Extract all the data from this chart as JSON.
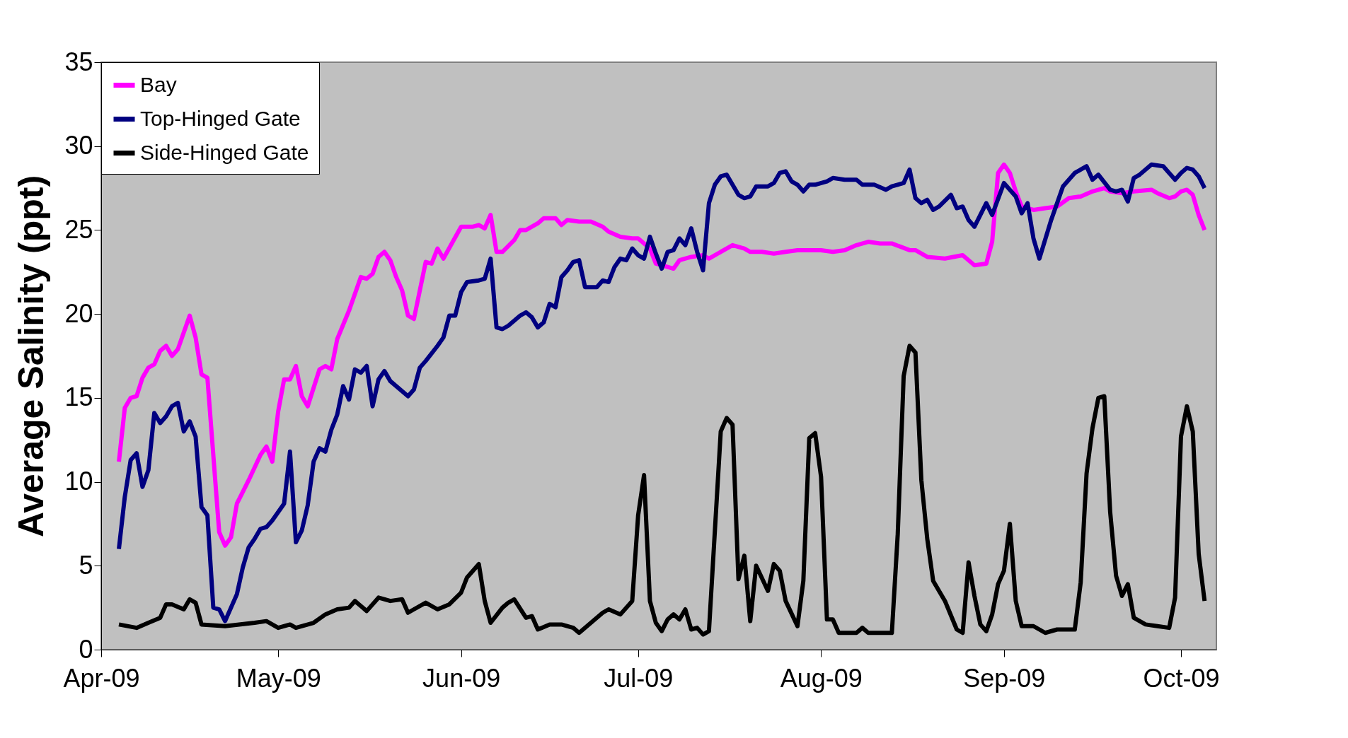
{
  "chart_data": {
    "type": "line",
    "ylabel": "Average Salinity (ppt)",
    "xlim": [
      "2009-04-01",
      "2009-10-07"
    ],
    "xticks": [
      {
        "value": "2009-04-01",
        "label": "Apr-09"
      },
      {
        "value": "2009-05-01",
        "label": "May-09"
      },
      {
        "value": "2009-06-01",
        "label": "Jun-09"
      },
      {
        "value": "2009-07-01",
        "label": "Jul-09"
      },
      {
        "value": "2009-08-01",
        "label": "Aug-09"
      },
      {
        "value": "2009-09-01",
        "label": "Sep-09"
      },
      {
        "value": "2009-10-01",
        "label": "Oct-09"
      }
    ],
    "ylim": [
      0,
      35
    ],
    "yticks": [
      0,
      5,
      10,
      15,
      20,
      25,
      30,
      35
    ],
    "grid": false,
    "legend": "top left",
    "marker": "none",
    "line_style": "solid",
    "series": [
      {
        "name": "Bay",
        "color": "#ff00ff",
        "x": [
          "2009-04-04",
          "2009-04-05",
          "2009-04-06",
          "2009-04-07",
          "2009-04-08",
          "2009-04-09",
          "2009-04-10",
          "2009-04-11",
          "2009-04-12",
          "2009-04-13",
          "2009-04-14",
          "2009-04-16",
          "2009-04-17",
          "2009-04-18",
          "2009-04-19",
          "2009-04-21",
          "2009-04-22",
          "2009-04-23",
          "2009-04-24",
          "2009-04-25",
          "2009-04-26",
          "2009-04-28",
          "2009-04-29",
          "2009-04-30",
          "2009-05-01",
          "2009-05-02",
          "2009-05-03",
          "2009-05-04",
          "2009-05-05",
          "2009-05-06",
          "2009-05-08",
          "2009-05-09",
          "2009-05-10",
          "2009-05-11",
          "2009-05-13",
          "2009-05-15",
          "2009-05-16",
          "2009-05-17",
          "2009-05-18",
          "2009-05-19",
          "2009-05-20",
          "2009-05-21",
          "2009-05-22",
          "2009-05-23",
          "2009-05-24",
          "2009-05-26",
          "2009-05-27",
          "2009-05-28",
          "2009-05-29",
          "2009-06-01",
          "2009-06-03",
          "2009-06-04",
          "2009-06-05",
          "2009-06-06",
          "2009-06-07",
          "2009-06-08",
          "2009-06-10",
          "2009-06-11",
          "2009-06-12",
          "2009-06-14",
          "2009-06-15",
          "2009-06-17",
          "2009-06-18",
          "2009-06-19",
          "2009-06-21",
          "2009-06-23",
          "2009-06-25",
          "2009-06-26",
          "2009-06-28",
          "2009-06-30",
          "2009-07-01",
          "2009-07-03",
          "2009-07-04",
          "2009-07-06",
          "2009-07-07",
          "2009-07-08",
          "2009-07-10",
          "2009-07-12",
          "2009-07-13",
          "2009-07-17",
          "2009-07-19",
          "2009-07-20",
          "2009-07-22",
          "2009-07-24",
          "2009-07-26",
          "2009-07-28",
          "2009-07-29",
          "2009-08-01",
          "2009-08-03",
          "2009-08-05",
          "2009-08-07",
          "2009-08-09",
          "2009-08-11",
          "2009-08-13",
          "2009-08-16",
          "2009-08-17",
          "2009-08-19",
          "2009-08-22",
          "2009-08-25",
          "2009-08-27",
          "2009-08-29",
          "2009-08-30",
          "2009-08-31",
          "2009-09-01",
          "2009-09-02",
          "2009-09-03",
          "2009-09-04",
          "2009-09-06",
          "2009-09-08",
          "2009-09-10",
          "2009-09-12",
          "2009-09-14",
          "2009-09-16",
          "2009-09-18",
          "2009-09-19",
          "2009-09-21",
          "2009-09-23",
          "2009-09-26",
          "2009-09-27",
          "2009-09-29",
          "2009-09-30",
          "2009-10-01",
          "2009-10-02",
          "2009-10-03",
          "2009-10-04",
          "2009-10-05"
        ],
        "values": [
          11.2,
          14.4,
          15.0,
          15.1,
          16.2,
          16.8,
          17.0,
          17.8,
          18.1,
          17.5,
          17.9,
          19.9,
          18.6,
          16.4,
          16.2,
          7.0,
          6.2,
          6.7,
          8.7,
          9.4,
          10.1,
          11.6,
          12.1,
          11.2,
          14.2,
          16.1,
          16.1,
          16.9,
          15.1,
          14.5,
          16.7,
          16.9,
          16.7,
          18.5,
          20.2,
          22.2,
          22.1,
          22.4,
          23.4,
          23.7,
          23.2,
          22.2,
          21.4,
          19.9,
          19.7,
          23.1,
          23.0,
          23.9,
          23.3,
          25.2,
          25.2,
          25.3,
          25.1,
          25.9,
          23.7,
          23.7,
          24.4,
          25.0,
          25.0,
          25.4,
          25.7,
          25.7,
          25.3,
          25.6,
          25.5,
          25.5,
          25.2,
          24.9,
          24.6,
          24.5,
          24.5,
          23.9,
          23.0,
          22.8,
          22.7,
          23.2,
          23.4,
          23.5,
          23.3,
          24.1,
          23.9,
          23.7,
          23.7,
          23.6,
          23.7,
          23.8,
          23.8,
          23.8,
          23.7,
          23.8,
          24.1,
          24.3,
          24.2,
          24.2,
          23.8,
          23.8,
          23.4,
          23.3,
          23.5,
          22.9,
          23.0,
          24.3,
          28.4,
          28.9,
          28.4,
          27.3,
          26.4,
          26.2,
          26.3,
          26.4,
          26.9,
          27.0,
          27.3,
          27.5,
          27.3,
          27.2,
          27.3,
          27.4,
          27.2,
          26.9,
          27.0,
          27.3,
          27.4,
          27.1,
          25.9,
          25.0
        ]
      },
      {
        "name": "Top-Hinged Gate",
        "color": "#000080",
        "x": [
          "2009-04-04",
          "2009-04-05",
          "2009-04-06",
          "2009-04-07",
          "2009-04-08",
          "2009-04-09",
          "2009-04-10",
          "2009-04-11",
          "2009-04-12",
          "2009-04-13",
          "2009-04-14",
          "2009-04-15",
          "2009-04-16",
          "2009-04-17",
          "2009-04-18",
          "2009-04-19",
          "2009-04-20",
          "2009-04-21",
          "2009-04-22",
          "2009-04-24",
          "2009-04-25",
          "2009-04-26",
          "2009-04-27",
          "2009-04-28",
          "2009-04-29",
          "2009-04-30",
          "2009-05-02",
          "2009-05-03",
          "2009-05-04",
          "2009-05-05",
          "2009-05-06",
          "2009-05-07",
          "2009-05-08",
          "2009-05-09",
          "2009-05-10",
          "2009-05-11",
          "2009-05-12",
          "2009-05-13",
          "2009-05-14",
          "2009-05-15",
          "2009-05-16",
          "2009-05-17",
          "2009-05-18",
          "2009-05-19",
          "2009-05-20",
          "2009-05-23",
          "2009-05-24",
          "2009-05-25",
          "2009-05-26",
          "2009-05-28",
          "2009-05-29",
          "2009-05-30",
          "2009-05-31",
          "2009-06-01",
          "2009-06-02",
          "2009-06-04",
          "2009-06-05",
          "2009-06-06",
          "2009-06-07",
          "2009-06-08",
          "2009-06-09",
          "2009-06-11",
          "2009-06-12",
          "2009-06-13",
          "2009-06-14",
          "2009-06-15",
          "2009-06-16",
          "2009-06-17",
          "2009-06-18",
          "2009-06-19",
          "2009-06-20",
          "2009-06-21",
          "2009-06-22",
          "2009-06-23",
          "2009-06-24",
          "2009-06-25",
          "2009-06-26",
          "2009-06-27",
          "2009-06-28",
          "2009-06-29",
          "2009-06-30",
          "2009-07-01",
          "2009-07-02",
          "2009-07-03",
          "2009-07-04",
          "2009-07-05",
          "2009-07-06",
          "2009-07-07",
          "2009-07-08",
          "2009-07-09",
          "2009-07-10",
          "2009-07-11",
          "2009-07-12",
          "2009-07-13",
          "2009-07-14",
          "2009-07-15",
          "2009-07-16",
          "2009-07-17",
          "2009-07-18",
          "2009-07-19",
          "2009-07-20",
          "2009-07-21",
          "2009-07-23",
          "2009-07-24",
          "2009-07-25",
          "2009-07-26",
          "2009-07-27",
          "2009-07-28",
          "2009-07-29",
          "2009-07-30",
          "2009-07-31",
          "2009-08-02",
          "2009-08-03",
          "2009-08-05",
          "2009-08-07",
          "2009-08-08",
          "2009-08-10",
          "2009-08-12",
          "2009-08-13",
          "2009-08-15",
          "2009-08-16",
          "2009-08-17",
          "2009-08-18",
          "2009-08-19",
          "2009-08-20",
          "2009-08-21",
          "2009-08-23",
          "2009-08-24",
          "2009-08-25",
          "2009-08-26",
          "2009-08-27",
          "2009-08-29",
          "2009-08-30",
          "2009-09-01",
          "2009-09-03",
          "2009-09-04",
          "2009-09-05",
          "2009-09-06",
          "2009-09-07",
          "2009-09-09",
          "2009-09-11",
          "2009-09-13",
          "2009-09-15",
          "2009-09-16",
          "2009-09-17",
          "2009-09-19",
          "2009-09-20",
          "2009-09-21",
          "2009-09-22",
          "2009-09-23",
          "2009-09-24",
          "2009-09-26",
          "2009-09-28",
          "2009-09-29",
          "2009-09-30",
          "2009-10-01",
          "2009-10-02",
          "2009-10-03",
          "2009-10-04",
          "2009-10-05"
        ],
        "values": [
          6.0,
          9.1,
          11.3,
          11.7,
          9.7,
          10.7,
          14.1,
          13.5,
          13.9,
          14.5,
          14.7,
          13.0,
          13.6,
          12.7,
          8.5,
          8.0,
          2.5,
          2.4,
          1.7,
          3.3,
          4.9,
          6.1,
          6.6,
          7.2,
          7.3,
          7.7,
          8.7,
          11.8,
          6.4,
          7.1,
          8.6,
          11.2,
          12.0,
          11.8,
          13.1,
          14.0,
          15.7,
          14.9,
          16.7,
          16.5,
          16.9,
          14.5,
          16.1,
          16.6,
          16.0,
          15.1,
          15.5,
          16.8,
          17.2,
          18.1,
          18.6,
          19.9,
          19.9,
          21.3,
          21.9,
          22.0,
          22.1,
          23.3,
          19.2,
          19.1,
          19.3,
          19.9,
          20.1,
          19.8,
          19.2,
          19.5,
          20.6,
          20.4,
          22.2,
          22.6,
          23.1,
          23.2,
          21.6,
          21.6,
          21.6,
          22.0,
          21.9,
          22.8,
          23.3,
          23.2,
          23.9,
          23.5,
          23.3,
          24.6,
          23.6,
          22.7,
          23.7,
          23.8,
          24.5,
          24.1,
          25.1,
          23.7,
          22.6,
          26.6,
          27.7,
          28.2,
          28.3,
          27.7,
          27.1,
          26.9,
          27.0,
          27.6,
          27.6,
          27.8,
          28.4,
          28.5,
          27.9,
          27.7,
          27.3,
          27.7,
          27.7,
          27.9,
          28.1,
          28.0,
          28.0,
          27.7,
          27.7,
          27.4,
          27.6,
          27.8,
          28.6,
          26.9,
          26.6,
          26.8,
          26.2,
          26.4,
          27.1,
          26.3,
          26.4,
          25.6,
          25.2,
          26.6,
          25.9,
          27.8,
          27.0,
          26.0,
          26.6,
          24.5,
          23.3,
          25.6,
          27.6,
          28.4,
          28.8,
          28.0,
          28.3,
          27.4,
          27.3,
          27.4,
          26.7,
          28.1,
          28.3,
          28.9,
          28.8,
          28.4,
          28.0,
          28.4,
          28.7,
          28.6,
          28.2,
          27.5
        ]
      },
      {
        "name": "Side-Hinged Gate",
        "color": "#000000",
        "x": [
          "2009-04-04",
          "2009-04-07",
          "2009-04-09",
          "2009-04-11",
          "2009-04-12",
          "2009-04-13",
          "2009-04-15",
          "2009-04-16",
          "2009-04-17",
          "2009-04-18",
          "2009-04-22",
          "2009-04-27",
          "2009-04-29",
          "2009-05-01",
          "2009-05-03",
          "2009-05-04",
          "2009-05-07",
          "2009-05-09",
          "2009-05-11",
          "2009-05-13",
          "2009-05-14",
          "2009-05-16",
          "2009-05-18",
          "2009-05-20",
          "2009-05-22",
          "2009-05-23",
          "2009-05-24",
          "2009-05-26",
          "2009-05-28",
          "2009-05-30",
          "2009-06-01",
          "2009-06-02",
          "2009-06-04",
          "2009-06-05",
          "2009-06-06",
          "2009-06-08",
          "2009-06-09",
          "2009-06-10",
          "2009-06-12",
          "2009-06-13",
          "2009-06-14",
          "2009-06-16",
          "2009-06-18",
          "2009-06-20",
          "2009-06-21",
          "2009-06-23",
          "2009-06-25",
          "2009-06-26",
          "2009-06-28",
          "2009-06-30",
          "2009-07-01",
          "2009-07-02",
          "2009-07-03",
          "2009-07-04",
          "2009-07-05",
          "2009-07-06",
          "2009-07-07",
          "2009-07-08",
          "2009-07-09",
          "2009-07-10",
          "2009-07-11",
          "2009-07-12",
          "2009-07-13",
          "2009-07-15",
          "2009-07-16",
          "2009-07-17",
          "2009-07-18",
          "2009-07-19",
          "2009-07-20",
          "2009-07-21",
          "2009-07-23",
          "2009-07-24",
          "2009-07-25",
          "2009-07-26",
          "2009-07-28",
          "2009-07-29",
          "2009-07-30",
          "2009-07-31",
          "2009-08-01",
          "2009-08-02",
          "2009-08-03",
          "2009-08-04",
          "2009-08-07",
          "2009-08-08",
          "2009-08-09",
          "2009-08-11",
          "2009-08-13",
          "2009-08-14",
          "2009-08-15",
          "2009-08-16",
          "2009-08-17",
          "2009-08-18",
          "2009-08-19",
          "2009-08-20",
          "2009-08-22",
          "2009-08-24",
          "2009-08-25",
          "2009-08-26",
          "2009-08-27",
          "2009-08-28",
          "2009-08-29",
          "2009-08-30",
          "2009-08-31",
          "2009-09-01",
          "2009-09-02",
          "2009-09-03",
          "2009-09-04",
          "2009-09-06",
          "2009-09-08",
          "2009-09-10",
          "2009-09-13",
          "2009-09-14",
          "2009-09-15",
          "2009-09-16",
          "2009-09-17",
          "2009-09-18",
          "2009-09-19",
          "2009-09-20",
          "2009-09-21",
          "2009-09-22",
          "2009-09-23",
          "2009-09-25",
          "2009-09-27",
          "2009-09-29",
          "2009-09-30",
          "2009-10-01",
          "2009-10-02",
          "2009-10-03",
          "2009-10-04",
          "2009-10-05"
        ],
        "values": [
          1.5,
          1.3,
          1.6,
          1.9,
          2.7,
          2.7,
          2.4,
          3.0,
          2.8,
          1.5,
          1.4,
          1.6,
          1.7,
          1.3,
          1.5,
          1.3,
          1.6,
          2.1,
          2.4,
          2.5,
          2.9,
          2.3,
          3.1,
          2.9,
          3.0,
          2.2,
          2.4,
          2.8,
          2.4,
          2.7,
          3.4,
          4.3,
          5.1,
          2.9,
          1.6,
          2.5,
          2.8,
          3.0,
          1.9,
          2.0,
          1.2,
          1.5,
          1.5,
          1.3,
          1.0,
          1.6,
          2.2,
          2.4,
          2.1,
          2.9,
          8.0,
          10.4,
          2.9,
          1.6,
          1.1,
          1.8,
          2.1,
          1.8,
          2.4,
          1.2,
          1.3,
          0.9,
          1.1,
          13.0,
          13.8,
          13.4,
          4.2,
          5.6,
          1.7,
          5.0,
          3.5,
          5.1,
          4.7,
          2.9,
          1.4,
          4.1,
          12.6,
          12.9,
          10.3,
          1.8,
          1.8,
          1.0,
          1.0,
          1.3,
          1.0,
          1.0,
          1.0,
          6.9,
          16.3,
          18.1,
          17.7,
          10.1,
          6.6,
          4.1,
          2.9,
          1.2,
          1.0,
          5.2,
          3.2,
          1.5,
          1.1,
          2.1,
          3.9,
          4.7,
          7.5,
          2.9,
          1.4,
          1.4,
          1.0,
          1.2,
          1.2,
          4.0,
          10.5,
          13.2,
          15.0,
          15.1,
          8.2,
          4.4,
          3.2,
          3.9,
          1.9,
          1.5,
          1.4,
          1.3,
          3.1,
          12.7,
          14.5,
          13.0,
          5.7,
          2.9
        ]
      }
    ]
  }
}
